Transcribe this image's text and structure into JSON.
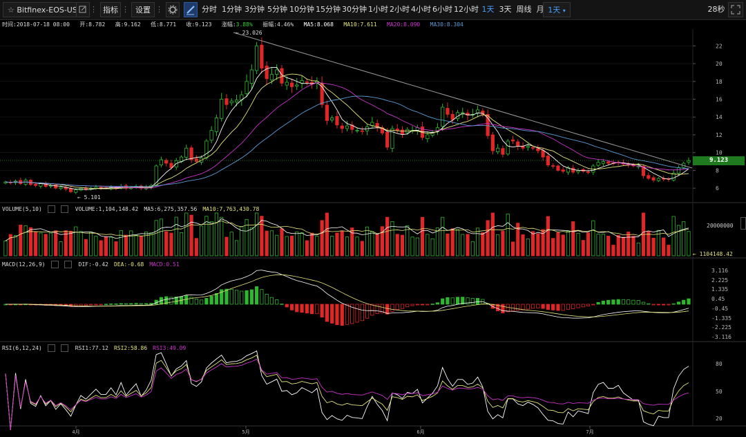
{
  "toolbar": {
    "symbol": "Bitfinex-EOS-USD",
    "indicators_label": "指标",
    "settings_label": "设置",
    "intervals": [
      "分时",
      "1分钟",
      "3分钟",
      "5分钟",
      "10分钟",
      "15分钟",
      "30分钟",
      "1小时",
      "2小时",
      "4小时",
      "6小时",
      "12小时",
      "1天",
      "3天",
      "周线",
      "月线"
    ],
    "active_interval": "1天",
    "dropdown_value": "1天",
    "countdown": "28秒"
  },
  "info": {
    "time_label": "时间:",
    "time": "2018-07-18 08:00",
    "open_label": "开:",
    "open": "8.782",
    "high_label": "高:",
    "high": "9.162",
    "low_label": "低:",
    "low": "8.771",
    "close_label": "收:",
    "close": "9.123",
    "chg_label": "涨幅:",
    "chg": "3.88%",
    "amp_label": "振幅:",
    "amp": "4.46%",
    "ma5": "MA5:8.068",
    "ma10": "MA10:7.611",
    "ma20": "MA20:8.090",
    "ma30": "MA30:8.304"
  },
  "price_panel": {
    "high_marker": "23.026",
    "low_marker": "5.101",
    "current_price": "9.123",
    "y_ticks": [
      "22",
      "20",
      "18",
      "16",
      "14",
      "12",
      "10",
      "8",
      "6"
    ]
  },
  "volume_panel": {
    "title": "VOLUME(5,10)",
    "volume": "VOLUME:1,104,148.42",
    "ma5": "MA5:6,275,357.56",
    "ma10": "MA10:7,763,430.78",
    "y_tick": "20000000",
    "current": "1104148.42"
  },
  "macd_panel": {
    "title": "MACD(12,26,9)",
    "dif": "DIF:-0.42",
    "dea": "DEA:-0.68",
    "macd": "MACD:0.51",
    "y_ticks": [
      "3.116",
      "2.225",
      "1.335",
      "0.45",
      "-0.45",
      "-1.335",
      "-2.225",
      "-3.116"
    ]
  },
  "rsi_panel": {
    "title": "RSI(6,12,24)",
    "rsi1": "RSI1:77.12",
    "rsi2": "RSI2:58.86",
    "rsi3": "RSI3:49.09",
    "y_ticks": [
      "80",
      "50",
      "20"
    ]
  },
  "x_axis": [
    "4月",
    "5月",
    "6月",
    "7月"
  ],
  "colors": {
    "up": "#2fb82f",
    "down": "#e02727",
    "ma5": "#ffffff",
    "ma10": "#e6e67a",
    "ma20": "#cc33cc",
    "ma30": "#5b9bd5",
    "accent": "#4a9cff",
    "price_tag": "#1f7a1f"
  },
  "chart_data": {
    "type": "candlestick",
    "series_note": "",
    "closes": [
      6.7,
      6.6,
      6.8,
      6.5,
      6.9,
      6.4,
      6.3,
      6.5,
      6.2,
      6.3,
      6.0,
      6.1,
      5.9,
      5.6,
      5.8,
      6.0,
      5.9,
      6.0,
      6.1,
      6.0,
      6.0,
      6.1,
      6.0,
      6.2,
      6.0,
      6.1,
      6.2,
      6.0,
      6.1,
      6.3,
      8.5,
      9.2,
      8.8,
      8.3,
      9.1,
      9.5,
      10.5,
      9.2,
      9.0,
      9.4,
      11.3,
      12.5,
      13.9,
      16.0,
      15.4,
      15.8,
      15.9,
      16.5,
      18.0,
      19.3,
      22.0,
      19.5,
      18.3,
      18.8,
      19.3,
      17.8,
      17.9,
      17.4,
      17.6,
      18.1,
      17.9,
      17.7,
      18.0,
      15.4,
      13.6,
      13.9,
      13.1,
      12.7,
      13.0,
      12.6,
      12.5,
      12.4,
      12.9,
      13.4,
      12.8,
      12.2,
      10.6,
      12.7,
      12.5,
      12.1,
      12.6,
      12.5,
      12.8,
      11.7,
      12.0,
      12.3,
      12.8,
      15.1,
      14.3,
      13.7,
      14.5,
      14.5,
      14.2,
      14.3,
      14.8,
      14.3,
      11.9,
      10.2,
      10.5,
      9.8,
      11.3,
      11.3,
      10.7,
      10.5,
      10.7,
      10.5,
      10.2,
      9.5,
      8.6,
      8.5,
      8.0,
      7.9,
      8.3,
      7.8,
      8.0,
      7.9,
      7.8,
      8.5,
      8.9,
      9.0,
      8.8,
      8.8,
      8.9,
      8.7,
      8.6,
      8.5,
      8.5,
      7.4,
      7.1,
      6.9,
      7.1,
      7.0,
      7.0,
      7.7,
      8.3,
      8.8,
      9.1
    ],
    "x_ticks": [
      "4月",
      "5月",
      "6月",
      "7月"
    ],
    "ylim": [
      5,
      23.5
    ]
  }
}
